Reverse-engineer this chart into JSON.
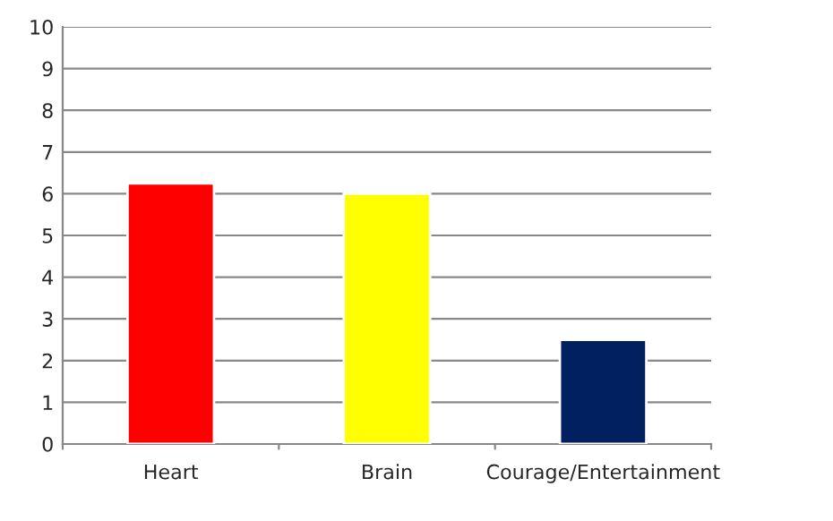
{
  "chart_data": {
    "type": "bar",
    "categories": [
      "Heart",
      "Brain",
      "Courage/Entertainment"
    ],
    "values": [
      6.25,
      6,
      2.5
    ],
    "colors": [
      "#ff0000",
      "#ffff00",
      "#002060"
    ],
    "ylim": [
      0,
      10
    ],
    "yticks": [
      0,
      1,
      2,
      3,
      4,
      5,
      6,
      7,
      8,
      9,
      10
    ],
    "grid": "y",
    "legend": false
  }
}
